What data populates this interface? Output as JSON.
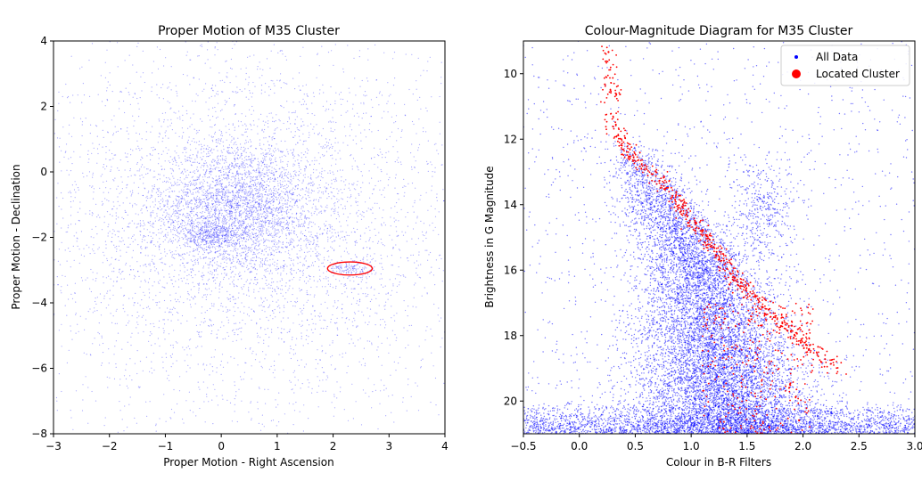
{
  "chart_data": [
    {
      "type": "scatter",
      "title": "Proper Motion of M35 Cluster",
      "xlabel": "Proper Motion - Right Ascension",
      "ylabel": "Proper Motion - Declination",
      "xlim": [
        -3,
        4
      ],
      "ylim": [
        -8,
        4
      ],
      "xticks": [
        -3,
        -2,
        -1,
        0,
        1,
        2,
        3,
        4
      ],
      "xtick_labels": [
        "−3",
        "−2",
        "−1",
        "0",
        "1",
        "2",
        "3",
        "4"
      ],
      "yticks": [
        -8,
        -6,
        -4,
        -2,
        0,
        2,
        4
      ],
      "ytick_labels": [
        "−8",
        "−6",
        "−4",
        "−2",
        "0",
        "2",
        "4"
      ],
      "series": [
        {
          "name": "All Data",
          "color": "#0000ff",
          "distribution": [
            {
              "center": [
                0.3,
                -1.1
              ],
              "spread": [
                0.75,
                1.0
              ],
              "count": 3000
            },
            {
              "center": [
                -0.2,
                -1.95
              ],
              "spread": [
                0.25,
                0.2
              ],
              "count": 350
            },
            {
              "center": [
                2.3,
                -2.95
              ],
              "spread": [
                0.22,
                0.15
              ],
              "count": 150
            },
            {
              "center": [
                0.5,
                -1.8
              ],
              "spread": [
                2.2,
                3.0
              ],
              "count": 4500
            }
          ]
        }
      ],
      "annotations": [
        {
          "type": "ellipse",
          "color": "#ff0000",
          "center": [
            2.3,
            -2.95
          ],
          "radius": [
            0.4,
            0.4
          ]
        }
      ]
    },
    {
      "type": "scatter",
      "title": "Colour-Magnitude Diagram for M35 Cluster",
      "xlabel": "Colour in B-R Filters",
      "ylabel": "Brightness in G Magnitude",
      "xlim": [
        -0.5,
        3.0
      ],
      "ylim": [
        21,
        9
      ],
      "y_inverted": true,
      "xticks": [
        -0.5,
        0.0,
        0.5,
        1.0,
        1.5,
        2.0,
        2.5,
        3.0
      ],
      "xtick_labels": [
        "−0.5",
        "0.0",
        "0.5",
        "1.0",
        "1.5",
        "2.0",
        "2.5",
        "3.0"
      ],
      "yticks": [
        10,
        12,
        14,
        16,
        18,
        20
      ],
      "ytick_labels": [
        "10",
        "12",
        "14",
        "16",
        "18",
        "20"
      ],
      "legend": {
        "position": "top-right",
        "entries": [
          {
            "label": "All Data",
            "color": "#0000ff"
          },
          {
            "label": "Located Cluster",
            "color": "#ff0000"
          }
        ]
      },
      "series": [
        {
          "name": "All Data",
          "color": "#0000ff",
          "distribution": [
            {
              "region": "main sequence band",
              "x_range": [
                0.3,
                2.6
              ],
              "y_range": [
                12,
                21
              ],
              "count": 9000
            },
            {
              "region": "red clump",
              "center": [
                1.65,
                14.2
              ],
              "spread": [
                0.15,
                0.8
              ],
              "count": 400
            },
            {
              "region": "faint floor",
              "x_range": [
                -0.5,
                3.0
              ],
              "y_range": [
                20,
                21
              ],
              "count": 2500
            },
            {
              "region": "field scatter",
              "x_range": [
                -0.5,
                3.0
              ],
              "y_range": [
                9,
                21
              ],
              "count": 1200
            }
          ]
        },
        {
          "name": "Located Cluster",
          "color": "#ff0000",
          "sequence": [
            [
              0.25,
              9.2
            ],
            [
              0.3,
              11.5
            ],
            [
              0.45,
              12.5
            ],
            [
              0.8,
              13.5
            ],
            [
              1.0,
              14.5
            ],
            [
              1.2,
              15.3
            ],
            [
              1.4,
              16.3
            ],
            [
              1.7,
              17.3
            ],
            [
              2.0,
              18.2
            ],
            [
              2.3,
              19.0
            ]
          ],
          "count": 650,
          "extra_scatter": {
            "x_range": [
              1.1,
              2.1
            ],
            "y_range": [
              17,
              21
            ],
            "count": 300
          }
        }
      ]
    }
  ]
}
